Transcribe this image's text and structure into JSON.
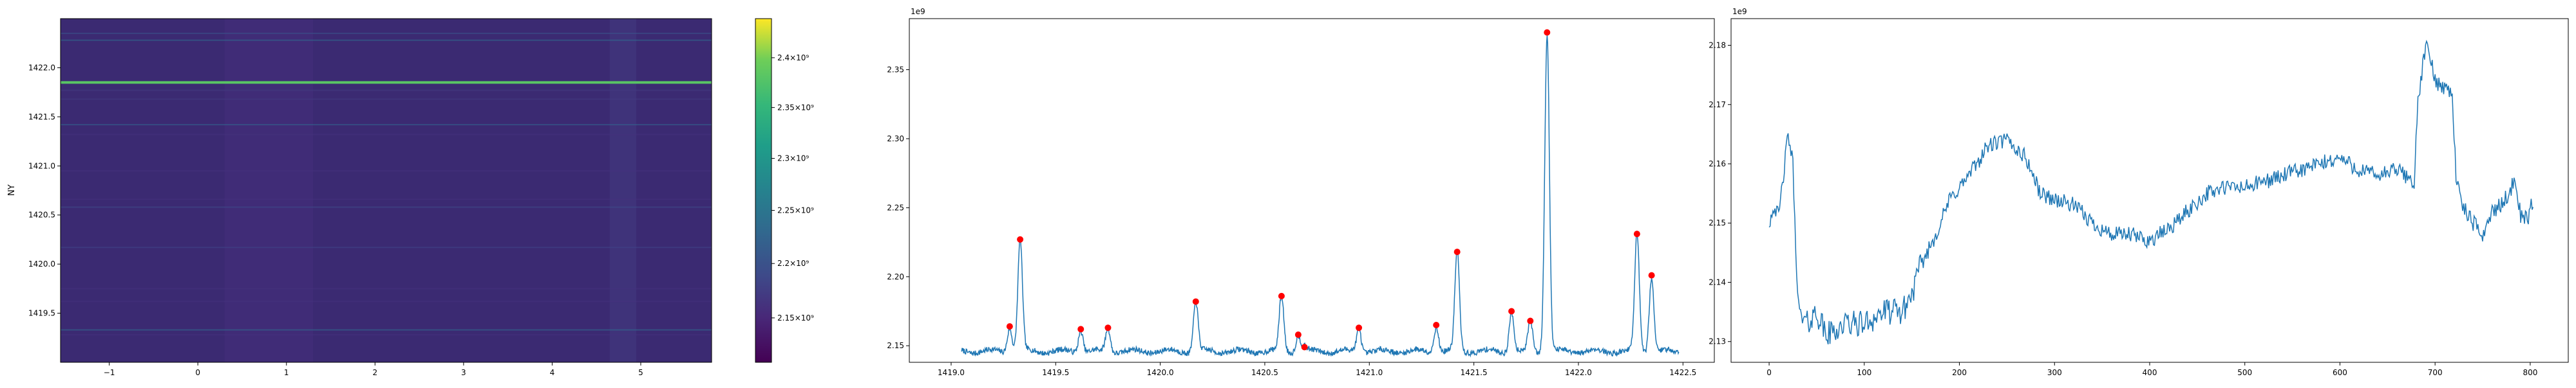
{
  "chart_data": [
    {
      "type": "heatmap",
      "title": "",
      "xlabel": "",
      "ylabel": "NY",
      "xlim": [
        -1.55,
        5.8
      ],
      "ylim": [
        1419.0,
        1422.5
      ],
      "x_ticks": [
        "−1",
        "0",
        "1",
        "2",
        "3",
        "4",
        "5"
      ],
      "x_tick_values": [
        -1,
        0,
        1,
        2,
        3,
        4,
        5
      ],
      "y_ticks": [
        "1419.5",
        "1420.0",
        "1420.5",
        "1421.0",
        "1421.5",
        "1422.0"
      ],
      "y_tick_values": [
        1419.5,
        1420.0,
        1420.5,
        1421.0,
        1421.5,
        1422.0
      ],
      "colormap": "viridis",
      "colorbar": {
        "scale": "log",
        "range": [
          2110000000.0,
          2440000000.0
        ],
        "tick_labels": [
          "2.15×10⁹",
          "2.2×10⁹",
          "2.25×10⁹",
          "2.3×10⁹",
          "2.35×10⁹",
          "2.4×10⁹"
        ],
        "tick_values": [
          2150000000.0,
          2200000000.0,
          2250000000.0,
          2300000000.0,
          2350000000.0,
          2400000000.0
        ]
      },
      "bright_rows": [
        {
          "y": 1421.85,
          "value": 2380000000.0
        },
        {
          "y": 1422.28,
          "value": 2230000000.0
        },
        {
          "y": 1419.33,
          "value": 2230000000.0
        },
        {
          "y": 1422.35,
          "value": 2200000000.0
        },
        {
          "y": 1421.42,
          "value": 2220000000.0
        },
        {
          "y": 1420.58,
          "value": 2190000000.0
        },
        {
          "y": 1420.17,
          "value": 2180000000.0
        },
        {
          "y": 1420.66,
          "value": 2160000000.0
        },
        {
          "y": 1421.68,
          "value": 2170000000.0
        },
        {
          "y": 1421.77,
          "value": 2170000000.0
        },
        {
          "y": 1420.95,
          "value": 2160000000.0
        },
        {
          "y": 1421.32,
          "value": 2160000000.0
        },
        {
          "y": 1419.62,
          "value": 2160000000.0
        },
        {
          "y": 1419.75,
          "value": 2160000000.0
        },
        {
          "y": 1419.28,
          "value": 2160000000.0
        }
      ],
      "bright_columns": [
        {
          "x_range": [
            4.65,
            4.95
          ],
          "value": 2170000000.0
        },
        {
          "x_range": [
            0.3,
            1.3
          ],
          "value": 2155000000.0
        }
      ]
    },
    {
      "type": "line",
      "title": "",
      "offset_text": "1e9",
      "xlabel": "",
      "ylabel": "",
      "xlim": [
        1418.8,
        1422.65
      ],
      "ylim": [
        2.138,
        2.387
      ],
      "x_ticks": [
        "1419.0",
        "1419.5",
        "1420.0",
        "1420.5",
        "1421.0",
        "1421.5",
        "1422.0",
        "1422.5"
      ],
      "x_tick_values": [
        1419.0,
        1419.5,
        1420.0,
        1420.5,
        1421.0,
        1421.5,
        1422.0,
        1422.5
      ],
      "y_ticks": [
        "2.15",
        "2.20",
        "2.25",
        "2.30",
        "2.35"
      ],
      "y_tick_values": [
        2.15,
        2.2,
        2.25,
        2.3,
        2.35
      ],
      "line_color": "#1f77b4",
      "marker_color": "#ff0000",
      "x_range": [
        1419.05,
        1422.48
      ],
      "baseline": 2.146,
      "peaks": [
        {
          "x": 1419.28,
          "y": 2.164
        },
        {
          "x": 1419.33,
          "y": 2.227
        },
        {
          "x": 1419.62,
          "y": 2.162
        },
        {
          "x": 1419.75,
          "y": 2.163
        },
        {
          "x": 1420.17,
          "y": 2.182
        },
        {
          "x": 1420.58,
          "y": 2.186
        },
        {
          "x": 1420.66,
          "y": 2.158
        },
        {
          "x": 1420.69,
          "y": 2.149
        },
        {
          "x": 1420.95,
          "y": 2.163
        },
        {
          "x": 1421.32,
          "y": 2.165
        },
        {
          "x": 1421.42,
          "y": 2.218
        },
        {
          "x": 1421.68,
          "y": 2.175
        },
        {
          "x": 1421.77,
          "y": 2.168
        },
        {
          "x": 1421.85,
          "y": 2.377
        },
        {
          "x": 1422.28,
          "y": 2.231
        },
        {
          "x": 1422.35,
          "y": 2.201
        }
      ]
    },
    {
      "type": "line",
      "title": "",
      "offset_text": "1e9",
      "xlabel": "",
      "ylabel": "",
      "xlim": [
        -40,
        840
      ],
      "ylim": [
        2.1265,
        2.1845
      ],
      "x_ticks": [
        "0",
        "100",
        "200",
        "300",
        "400",
        "500",
        "600",
        "700",
        "800"
      ],
      "x_tick_values": [
        0,
        100,
        200,
        300,
        400,
        500,
        600,
        700,
        800
      ],
      "y_ticks": [
        "2.13",
        "2.14",
        "2.15",
        "2.16",
        "2.17",
        "2.18"
      ],
      "y_tick_values": [
        2.13,
        2.14,
        2.15,
        2.16,
        2.17,
        2.18
      ],
      "line_color": "#1f77b4",
      "trend_points": [
        {
          "x": 0,
          "y": 2.15
        },
        {
          "x": 5,
          "y": 2.153
        },
        {
          "x": 10,
          "y": 2.151
        },
        {
          "x": 15,
          "y": 2.158
        },
        {
          "x": 20,
          "y": 2.165
        },
        {
          "x": 25,
          "y": 2.16
        },
        {
          "x": 28,
          "y": 2.145
        },
        {
          "x": 32,
          "y": 2.134
        },
        {
          "x": 40,
          "y": 2.133
        },
        {
          "x": 50,
          "y": 2.135
        },
        {
          "x": 60,
          "y": 2.131
        },
        {
          "x": 80,
          "y": 2.133
        },
        {
          "x": 100,
          "y": 2.133
        },
        {
          "x": 120,
          "y": 2.135
        },
        {
          "x": 140,
          "y": 2.135
        },
        {
          "x": 150,
          "y": 2.138
        },
        {
          "x": 160,
          "y": 2.143
        },
        {
          "x": 175,
          "y": 2.148
        },
        {
          "x": 190,
          "y": 2.154
        },
        {
          "x": 210,
          "y": 2.158
        },
        {
          "x": 230,
          "y": 2.163
        },
        {
          "x": 250,
          "y": 2.164
        },
        {
          "x": 270,
          "y": 2.161
        },
        {
          "x": 285,
          "y": 2.155
        },
        {
          "x": 300,
          "y": 2.154
        },
        {
          "x": 320,
          "y": 2.153
        },
        {
          "x": 340,
          "y": 2.15
        },
        {
          "x": 360,
          "y": 2.148
        },
        {
          "x": 380,
          "y": 2.148
        },
        {
          "x": 400,
          "y": 2.147
        },
        {
          "x": 420,
          "y": 2.149
        },
        {
          "x": 440,
          "y": 2.152
        },
        {
          "x": 460,
          "y": 2.155
        },
        {
          "x": 480,
          "y": 2.156
        },
        {
          "x": 500,
          "y": 2.156
        },
        {
          "x": 520,
          "y": 2.157
        },
        {
          "x": 540,
          "y": 2.158
        },
        {
          "x": 560,
          "y": 2.159
        },
        {
          "x": 580,
          "y": 2.16
        },
        {
          "x": 600,
          "y": 2.161
        },
        {
          "x": 620,
          "y": 2.159
        },
        {
          "x": 640,
          "y": 2.158
        },
        {
          "x": 660,
          "y": 2.159
        },
        {
          "x": 678,
          "y": 2.157
        },
        {
          "x": 682,
          "y": 2.17
        },
        {
          "x": 688,
          "y": 2.178
        },
        {
          "x": 692,
          "y": 2.18
        },
        {
          "x": 700,
          "y": 2.174
        },
        {
          "x": 710,
          "y": 2.173
        },
        {
          "x": 718,
          "y": 2.172
        },
        {
          "x": 722,
          "y": 2.158
        },
        {
          "x": 728,
          "y": 2.153
        },
        {
          "x": 740,
          "y": 2.15
        },
        {
          "x": 750,
          "y": 2.148
        },
        {
          "x": 760,
          "y": 2.152
        },
        {
          "x": 770,
          "y": 2.153
        },
        {
          "x": 780,
          "y": 2.156
        },
        {
          "x": 785,
          "y": 2.157
        },
        {
          "x": 790,
          "y": 2.151
        },
        {
          "x": 798,
          "y": 2.151
        },
        {
          "x": 803,
          "y": 2.154
        }
      ]
    }
  ]
}
